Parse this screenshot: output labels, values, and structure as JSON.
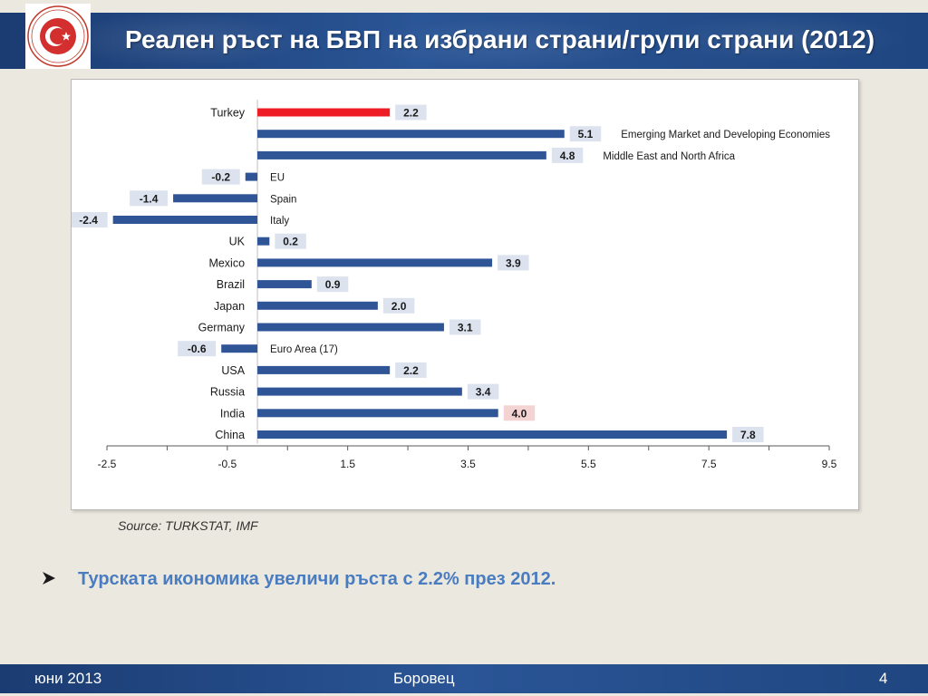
{
  "header": {
    "title": "Реален ръст на БВП на избрани страни/групи страни (2012)"
  },
  "logo": {
    "text_top": "REPUBLIC OF TURKEY",
    "text_bottom": "MINISTRY OF ECONOMY"
  },
  "source": "Source: TURKSTAT, IMF",
  "bullet": {
    "text": "Турската икономика увеличи ръста с  2.2% през 2012."
  },
  "footer": {
    "date": "юни  2013",
    "place": "Боровец",
    "page": "4"
  },
  "colors": {
    "bar": "#2f5597",
    "highlight_bar": "#ee1c24",
    "label_bg": "#dce3ef",
    "highlight_label_bg": "#f4d3d3",
    "header_bg": "#1f4680"
  },
  "chart_data": {
    "type": "bar",
    "orientation": "horizontal",
    "categories": [
      "Turkey",
      "Emerging Market and Developing Economies",
      "Middle East and  North Africa",
      "EU",
      "Spain",
      "Italy",
      "UK",
      "Mexico",
      "Brazil",
      "Japan",
      "Germany",
      "Euro Area (17)",
      "USA",
      "Russia",
      "India",
      "China"
    ],
    "values": [
      2.2,
      5.1,
      4.8,
      -0.2,
      -1.4,
      -2.4,
      0.2,
      3.9,
      0.9,
      2.0,
      3.1,
      -0.6,
      2.2,
      3.4,
      4.0,
      7.8
    ],
    "value_labels": [
      "2.2",
      "5.1",
      "4.8",
      "-0.2",
      "-1.4",
      "-2.4",
      "0.2",
      "3.9",
      "0.9",
      "2.0",
      "3.1",
      "-0.6",
      "2.2",
      "3.4",
      "4.0",
      "7.8"
    ],
    "label_placement": [
      "left",
      "right",
      "right",
      "right",
      "right",
      "right",
      "left",
      "left",
      "left",
      "left",
      "left",
      "right",
      "left",
      "left",
      "left",
      "left"
    ],
    "highlight_bar": "Turkey",
    "highlight_label": "India",
    "xlim": [
      -2.5,
      9.5
    ],
    "xticks": [
      "-2.5",
      "-0.5",
      "1.5",
      "3.5",
      "5.5",
      "7.5",
      "9.5"
    ],
    "grid": false,
    "legend": "none"
  }
}
